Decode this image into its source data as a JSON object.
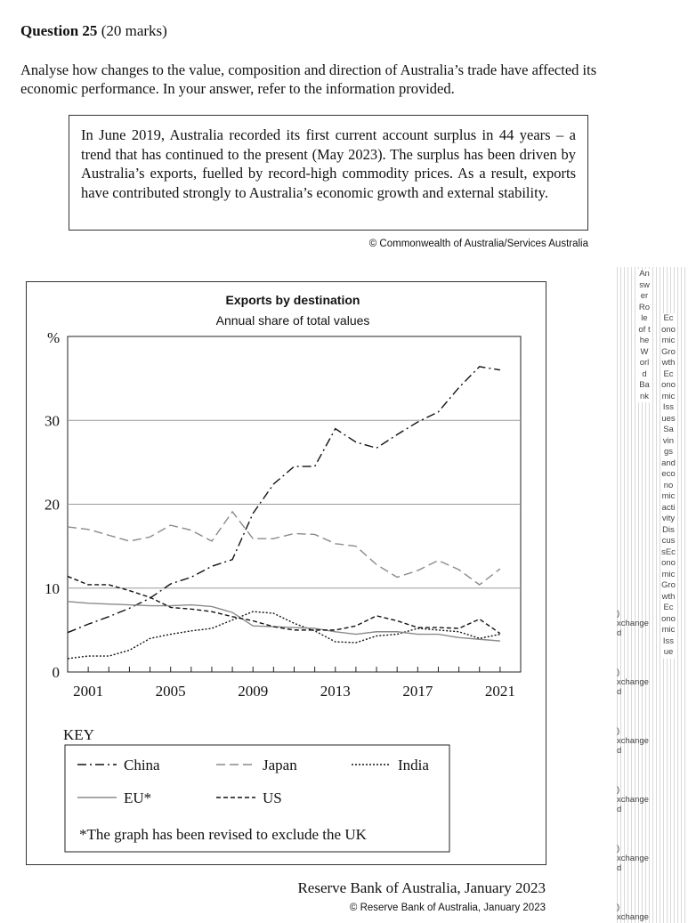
{
  "question": {
    "number_label": "Question 25",
    "marks": "(20 marks)",
    "prompt": "Analyse how changes to the value, composition and direction of Australia’s trade have affected its economic performance. In your answer, refer to the information provided."
  },
  "stimulus": {
    "text": "In June 2019, Australia recorded its first current account surplus in 44 years – a trend that has continued to the present (May 2023). The surplus has been driven by Australia’s exports, fuelled by record-high commodity prices. As a result, exports have contributed strongly to Australia’s economic growth and external stability.",
    "credit": "© Commonwealth of Australia/Services Australia"
  },
  "chart_data": {
    "type": "line",
    "title": "Exports by destination",
    "subtitle": "Annual share of total values",
    "ylabel": "%",
    "xlabel": "",
    "ylim": [
      0,
      40
    ],
    "xlim": [
      2000,
      2022
    ],
    "yticks": [
      0,
      10,
      20,
      30
    ],
    "xtick_labels": [
      "2001",
      "2005",
      "2009",
      "2013",
      "2017",
      "2021"
    ],
    "grid": "horizontal",
    "x": [
      2000,
      2001,
      2002,
      2003,
      2004,
      2005,
      2006,
      2007,
      2008,
      2009,
      2010,
      2011,
      2012,
      2013,
      2014,
      2015,
      2016,
      2017,
      2018,
      2019,
      2020,
      2021
    ],
    "series": [
      {
        "name": "China",
        "dash": "dash-dot",
        "color": "#111111",
        "values": [
          4.7,
          5.7,
          6.6,
          7.6,
          8.8,
          10.5,
          11.3,
          12.6,
          13.4,
          18.9,
          22.4,
          24.5,
          24.5,
          29.0,
          27.4,
          26.7,
          28.3,
          29.8,
          31.0,
          33.9,
          36.4,
          36.0
        ]
      },
      {
        "name": "Japan",
        "dash": "long-dash",
        "color": "#8a8a8a",
        "values": [
          17.3,
          17.0,
          16.3,
          15.6,
          16.1,
          17.5,
          16.9,
          15.6,
          19.1,
          15.9,
          15.9,
          16.5,
          16.4,
          15.3,
          15.0,
          12.8,
          11.3,
          12.1,
          13.3,
          12.2,
          10.4,
          12.3
        ]
      },
      {
        "name": "India",
        "dash": "dotted",
        "color": "#111111",
        "values": [
          1.6,
          1.9,
          1.9,
          2.6,
          4.0,
          4.5,
          4.9,
          5.2,
          6.2,
          7.2,
          7.0,
          5.8,
          4.9,
          3.6,
          3.5,
          4.3,
          4.5,
          5.2,
          5.0,
          4.8,
          4.0,
          4.5
        ]
      },
      {
        "name": "EU*",
        "dash": "solid",
        "color": "#8a8a8a",
        "values": [
          8.4,
          8.2,
          8.1,
          8.0,
          7.9,
          7.9,
          8.0,
          7.8,
          7.1,
          5.5,
          5.4,
          5.3,
          5.2,
          4.8,
          4.5,
          4.8,
          4.8,
          4.5,
          4.5,
          4.1,
          3.9,
          3.7
        ]
      },
      {
        "name": "US",
        "dash": "short-dash",
        "color": "#111111",
        "values": [
          11.4,
          10.4,
          10.4,
          9.7,
          8.9,
          7.7,
          7.5,
          7.2,
          6.6,
          6.1,
          5.4,
          5.0,
          5.0,
          5.0,
          5.5,
          6.7,
          6.1,
          5.3,
          5.3,
          5.2,
          6.3,
          4.6
        ]
      }
    ],
    "legend_title": "KEY",
    "legend_note": "*The graph has been revised to exclude the UK"
  },
  "source": {
    "attribution": "Reserve Bank of Australia, January 2023",
    "copyright": "© Reserve Bank of Australia, January 2023"
  },
  "sidebar": {
    "col_a": "AnswerRole of the World Bank",
    "col_b": "Economic GrowthEconomic IssuesSavings and economic activityDiscussEconomic GrowthEconomic Issue",
    "exchange_label": "xchange",
    "exchange_prefix_top": ")",
    "exchange_prefix_bottom": "d"
  },
  "colors": {
    "grid": "#9a9a9a",
    "dark_line": "#111111",
    "grey_line": "#8a8a8a"
  }
}
